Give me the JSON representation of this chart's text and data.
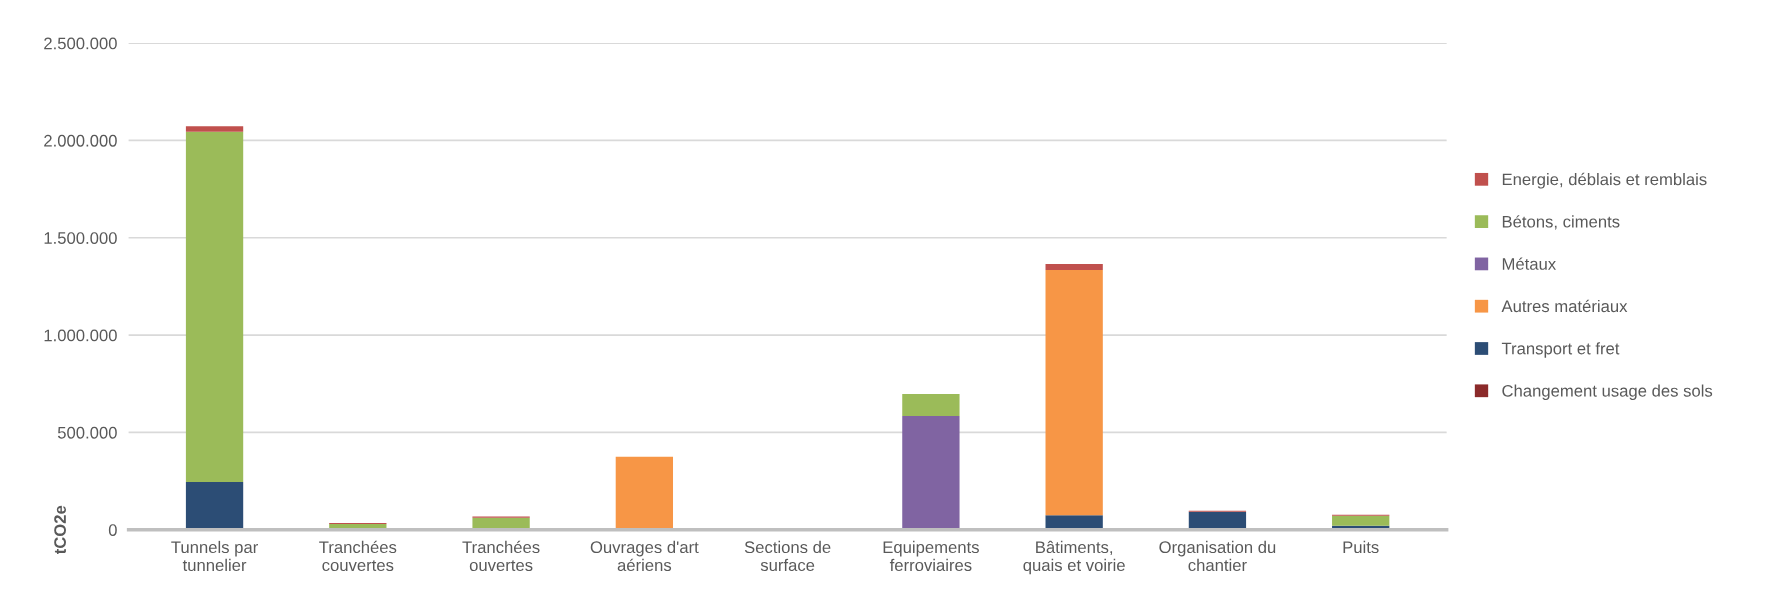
{
  "chart_data": {
    "type": "bar",
    "stacked": true,
    "ylabel": "tCO2e",
    "categories": [
      "Tunnels par\ntunnelier",
      "Tranchées\ncouvertes",
      "Tranchées\nouvertes",
      "Ouvrages d'art\naériens",
      "Sections de\nsurface",
      "Equipements\nferroviaires",
      "Bâtiments,\nquais et voirie",
      "Organisation du\nchantier",
      "Puits"
    ],
    "series": [
      {
        "name": "Changement usage des sols",
        "color": "#8b2a2a",
        "values": [
          0,
          0,
          0,
          0,
          0,
          0,
          5000,
          0,
          0
        ]
      },
      {
        "name": "Transport et fret",
        "color": "#2c4d75",
        "values": [
          245000,
          0,
          0,
          0,
          0,
          0,
          70000,
          92000,
          20000
        ]
      },
      {
        "name": "Autres matériaux",
        "color": "#f79646",
        "values": [
          0,
          0,
          0,
          375000,
          0,
          0,
          1260000,
          0,
          0
        ]
      },
      {
        "name": "Métaux",
        "color": "#8064a2",
        "values": [
          0,
          0,
          0,
          0,
          0,
          585000,
          0,
          0,
          0
        ]
      },
      {
        "name": "Bétons, ciments",
        "color": "#9bbb59",
        "values": [
          1800000,
          30000,
          62000,
          0,
          0,
          113000,
          0,
          0,
          52000
        ]
      },
      {
        "name": "Energie, déblais et remblais",
        "color": "#c0504d",
        "values": [
          28000,
          5000,
          6000,
          0,
          0,
          0,
          30000,
          6000,
          5000
        ]
      }
    ],
    "ylim": [
      0,
      2500000
    ],
    "yticks": [
      {
        "value": 0,
        "label": "0"
      },
      {
        "value": 500000,
        "label": "500.000"
      },
      {
        "value": 1000000,
        "label": "1.000.000"
      },
      {
        "value": 1500000,
        "label": "1.500.000"
      },
      {
        "value": 2000000,
        "label": "2.000.000"
      },
      {
        "value": 2500000,
        "label": "2.500.000"
      }
    ],
    "grid": "y",
    "legend": "right"
  }
}
